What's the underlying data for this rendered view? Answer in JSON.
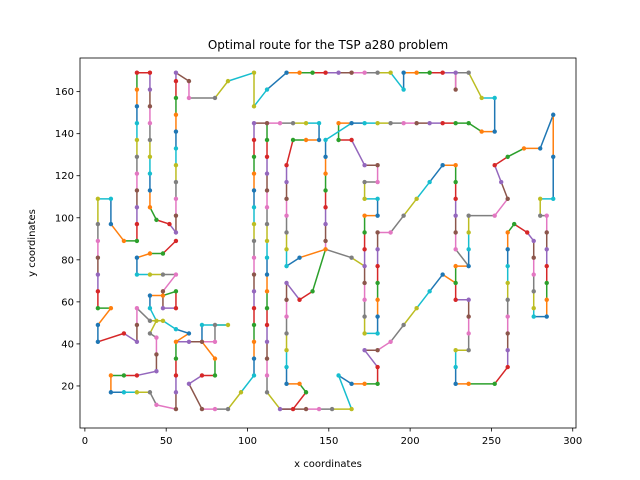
{
  "chart_data": {
    "type": "line",
    "title": "Optimal route for the TSP a280 problem",
    "xlabel": "x coordinates",
    "ylabel": "y coordinates",
    "xlim": [
      -3,
      302
    ],
    "ylim": [
      0,
      176
    ],
    "xticks": [
      0,
      50,
      100,
      150,
      200,
      250,
      300
    ],
    "yticks": [
      20,
      40,
      60,
      80,
      100,
      120,
      140,
      160
    ],
    "grid": false,
    "legend": "none",
    "palette": [
      "#1f77b4",
      "#ff7f0e",
      "#2ca02c",
      "#d62728",
      "#9467bd",
      "#8c564b",
      "#e377c2",
      "#7f7f7f",
      "#bcbd22",
      "#17becf"
    ],
    "route": [
      [
        288,
        149
      ],
      [
        280,
        133
      ],
      [
        270,
        133
      ],
      [
        260,
        129
      ],
      [
        252,
        125
      ],
      [
        256,
        117
      ],
      [
        260,
        109
      ],
      [
        252,
        101
      ],
      [
        236,
        101
      ],
      [
        236,
        93
      ],
      [
        236,
        85
      ],
      [
        236,
        77
      ],
      [
        228,
        77
      ],
      [
        228,
        69
      ],
      [
        228,
        61
      ],
      [
        236,
        61
      ],
      [
        236,
        53
      ],
      [
        236,
        45
      ],
      [
        236,
        37
      ],
      [
        228,
        37
      ],
      [
        228,
        29
      ],
      [
        228,
        21
      ],
      [
        236,
        21
      ],
      [
        252,
        21
      ],
      [
        260,
        29
      ],
      [
        260,
        37
      ],
      [
        260,
        45
      ],
      [
        260,
        53
      ],
      [
        260,
        61
      ],
      [
        260,
        69
      ],
      [
        260,
        77
      ],
      [
        260,
        85
      ],
      [
        260,
        93
      ],
      [
        264,
        97
      ],
      [
        272,
        93
      ],
      [
        276,
        89
      ],
      [
        276,
        81
      ],
      [
        276,
        73
      ],
      [
        276,
        65
      ],
      [
        276,
        57
      ],
      [
        276,
        53
      ],
      [
        284,
        53
      ],
      [
        284,
        61
      ],
      [
        284,
        69
      ],
      [
        284,
        77
      ],
      [
        284,
        85
      ],
      [
        284,
        93
      ],
      [
        284,
        101
      ],
      [
        280,
        101
      ],
      [
        280,
        109
      ],
      [
        288,
        109
      ],
      [
        288,
        129
      ],
      [
        288,
        149
      ]
    ],
    "route_part2": [
      [
        236,
        145
      ],
      [
        228,
        145
      ],
      [
        220,
        145
      ],
      [
        212,
        145
      ],
      [
        204,
        145
      ],
      [
        196,
        145
      ],
      [
        188,
        145
      ],
      [
        180,
        145
      ],
      [
        172,
        145
      ],
      [
        164,
        145
      ],
      [
        156,
        145
      ],
      [
        156,
        137
      ],
      [
        164,
        137
      ],
      [
        172,
        125
      ],
      [
        180,
        125
      ],
      [
        180,
        117
      ],
      [
        172,
        117
      ],
      [
        172,
        109
      ],
      [
        180,
        109
      ],
      [
        180,
        101
      ],
      [
        172,
        101
      ],
      [
        172,
        93
      ],
      [
        172,
        85
      ],
      [
        172,
        77
      ],
      [
        172,
        69
      ],
      [
        172,
        61
      ],
      [
        172,
        53
      ],
      [
        172,
        45
      ],
      [
        180,
        45
      ],
      [
        180,
        53
      ],
      [
        180,
        61
      ],
      [
        180,
        69
      ],
      [
        180,
        77
      ],
      [
        180,
        85
      ],
      [
        180,
        93
      ],
      [
        188,
        93
      ],
      [
        196,
        101
      ],
      [
        204,
        109
      ],
      [
        212,
        117
      ],
      [
        220,
        125
      ],
      [
        228,
        125
      ],
      [
        228,
        117
      ],
      [
        228,
        109
      ],
      [
        228,
        101
      ],
      [
        228,
        93
      ],
      [
        228,
        85
      ],
      [
        236,
        77
      ]
    ],
    "route_part3": [
      [
        104,
        169
      ],
      [
        104,
        153
      ],
      [
        112,
        161
      ],
      [
        124,
        169
      ],
      [
        132,
        169
      ],
      [
        140,
        169
      ],
      [
        148,
        169
      ],
      [
        156,
        169
      ],
      [
        164,
        169
      ],
      [
        172,
        169
      ],
      [
        180,
        169
      ],
      [
        188,
        169
      ],
      [
        196,
        161
      ],
      [
        196,
        169
      ],
      [
        204,
        169
      ],
      [
        212,
        169
      ],
      [
        220,
        169
      ],
      [
        228,
        169
      ],
      [
        228,
        161
      ],
      [
        228,
        169
      ],
      [
        236,
        169
      ],
      [
        244,
        157
      ],
      [
        252,
        157
      ],
      [
        252,
        141
      ],
      [
        244,
        141
      ],
      [
        236,
        145
      ]
    ],
    "route_part4": [
      [
        32,
        169
      ],
      [
        40,
        169
      ],
      [
        40,
        161
      ],
      [
        40,
        153
      ],
      [
        40,
        145
      ],
      [
        40,
        137
      ],
      [
        40,
        129
      ],
      [
        40,
        121
      ],
      [
        40,
        113
      ],
      [
        40,
        105
      ],
      [
        44,
        99
      ],
      [
        52,
        97
      ],
      [
        56,
        93
      ],
      [
        56,
        101
      ],
      [
        56,
        109
      ],
      [
        56,
        117
      ],
      [
        56,
        125
      ],
      [
        56,
        133
      ],
      [
        56,
        141
      ],
      [
        56,
        149
      ],
      [
        56,
        157
      ],
      [
        56,
        165
      ],
      [
        56,
        169
      ],
      [
        64,
        165
      ],
      [
        64,
        157
      ],
      [
        80,
        157
      ],
      [
        88,
        165
      ],
      [
        104,
        169
      ]
    ],
    "route_part5": [
      [
        8,
        41
      ],
      [
        8,
        49
      ],
      [
        16,
        57
      ],
      [
        8,
        57
      ],
      [
        8,
        65
      ],
      [
        8,
        73
      ],
      [
        8,
        81
      ],
      [
        8,
        89
      ],
      [
        8,
        97
      ],
      [
        8,
        109
      ],
      [
        16,
        109
      ],
      [
        16,
        97
      ],
      [
        24,
        89
      ],
      [
        32,
        89
      ],
      [
        32,
        97
      ],
      [
        32,
        105
      ],
      [
        32,
        113
      ],
      [
        32,
        121
      ],
      [
        32,
        129
      ],
      [
        32,
        137
      ],
      [
        32,
        145
      ],
      [
        32,
        153
      ],
      [
        32,
        161
      ],
      [
        32,
        169
      ]
    ],
    "route_part6": [
      [
        8,
        41
      ],
      [
        24,
        45
      ],
      [
        32,
        41
      ],
      [
        32,
        49
      ],
      [
        32,
        57
      ],
      [
        40,
        51
      ],
      [
        48,
        51
      ],
      [
        56,
        47
      ],
      [
        64,
        45
      ],
      [
        56,
        41
      ],
      [
        56,
        33
      ],
      [
        56,
        25
      ],
      [
        56,
        17
      ],
      [
        56,
        9
      ],
      [
        44,
        11
      ],
      [
        40,
        17
      ],
      [
        32,
        17
      ],
      [
        24,
        17
      ],
      [
        16,
        17
      ],
      [
        16,
        25
      ],
      [
        24,
        25
      ],
      [
        32,
        25
      ],
      [
        44,
        27
      ],
      [
        44,
        35
      ],
      [
        44,
        43
      ],
      [
        40,
        45
      ],
      [
        44,
        51
      ],
      [
        40,
        57
      ],
      [
        40,
        63
      ],
      [
        48,
        63
      ],
      [
        56,
        65
      ],
      [
        56,
        57
      ],
      [
        48,
        57
      ],
      [
        48,
        65
      ],
      [
        56,
        73
      ],
      [
        48,
        73
      ],
      [
        40,
        73
      ],
      [
        32,
        73
      ],
      [
        32,
        81
      ],
      [
        40,
        83
      ],
      [
        48,
        83
      ],
      [
        56,
        89
      ]
    ],
    "route_part7": [
      [
        56,
        41
      ],
      [
        64,
        41
      ],
      [
        72,
        41
      ],
      [
        80,
        41
      ],
      [
        80,
        49
      ],
      [
        88,
        49
      ],
      [
        72,
        49
      ],
      [
        72,
        41
      ],
      [
        80,
        33
      ],
      [
        80,
        25
      ],
      [
        72,
        25
      ],
      [
        64,
        21
      ],
      [
        72,
        9
      ],
      [
        80,
        9
      ],
      [
        88,
        9
      ],
      [
        96,
        17
      ],
      [
        104,
        25
      ],
      [
        104,
        33
      ],
      [
        104,
        41
      ],
      [
        104,
        49
      ],
      [
        104,
        57
      ],
      [
        104,
        65
      ],
      [
        104,
        73
      ],
      [
        104,
        81
      ],
      [
        104,
        89
      ],
      [
        104,
        97
      ],
      [
        104,
        105
      ],
      [
        104,
        113
      ],
      [
        104,
        121
      ],
      [
        104,
        129
      ],
      [
        104,
        137
      ],
      [
        104,
        145
      ],
      [
        112,
        145
      ],
      [
        120,
        145
      ],
      [
        128,
        145
      ],
      [
        136,
        145
      ],
      [
        144,
        145
      ],
      [
        144,
        137
      ],
      [
        136,
        137
      ],
      [
        128,
        137
      ],
      [
        124,
        125
      ],
      [
        124,
        117
      ],
      [
        124,
        109
      ],
      [
        124,
        101
      ],
      [
        124,
        93
      ],
      [
        124,
        85
      ],
      [
        124,
        77
      ],
      [
        132,
        81
      ],
      [
        148,
        85
      ],
      [
        140,
        65
      ],
      [
        132,
        61
      ],
      [
        124,
        69
      ],
      [
        124,
        61
      ],
      [
        124,
        53
      ],
      [
        124,
        45
      ],
      [
        124,
        37
      ],
      [
        124,
        29
      ],
      [
        124,
        21
      ],
      [
        132,
        21
      ],
      [
        136,
        17
      ],
      [
        128,
        9
      ],
      [
        120,
        9
      ],
      [
        136,
        9
      ],
      [
        144,
        9
      ],
      [
        152,
        9
      ],
      [
        164,
        9
      ],
      [
        156,
        25
      ],
      [
        164,
        21
      ],
      [
        172,
        21
      ],
      [
        180,
        21
      ],
      [
        180,
        29
      ],
      [
        172,
        37
      ],
      [
        180,
        37
      ],
      [
        188,
        41
      ],
      [
        196,
        49
      ],
      [
        204,
        57
      ],
      [
        212,
        65
      ],
      [
        220,
        73
      ],
      [
        228,
        69
      ]
    ],
    "route_part8": [
      [
        112,
        145
      ],
      [
        112,
        137
      ],
      [
        112,
        129
      ],
      [
        112,
        121
      ],
      [
        112,
        113
      ],
      [
        112,
        105
      ],
      [
        112,
        97
      ],
      [
        112,
        89
      ],
      [
        112,
        81
      ],
      [
        112,
        73
      ],
      [
        112,
        65
      ],
      [
        112,
        57
      ],
      [
        112,
        49
      ],
      [
        112,
        41
      ],
      [
        112,
        33
      ],
      [
        112,
        25
      ],
      [
        112,
        17
      ],
      [
        120,
        9
      ]
    ],
    "route_part9": [
      [
        164,
        145
      ],
      [
        148,
        137
      ],
      [
        148,
        129
      ],
      [
        148,
        121
      ],
      [
        148,
        113
      ],
      [
        148,
        105
      ],
      [
        148,
        97
      ],
      [
        148,
        89
      ],
      [
        148,
        85
      ],
      [
        164,
        81
      ],
      [
        172,
        77
      ]
    ]
  }
}
